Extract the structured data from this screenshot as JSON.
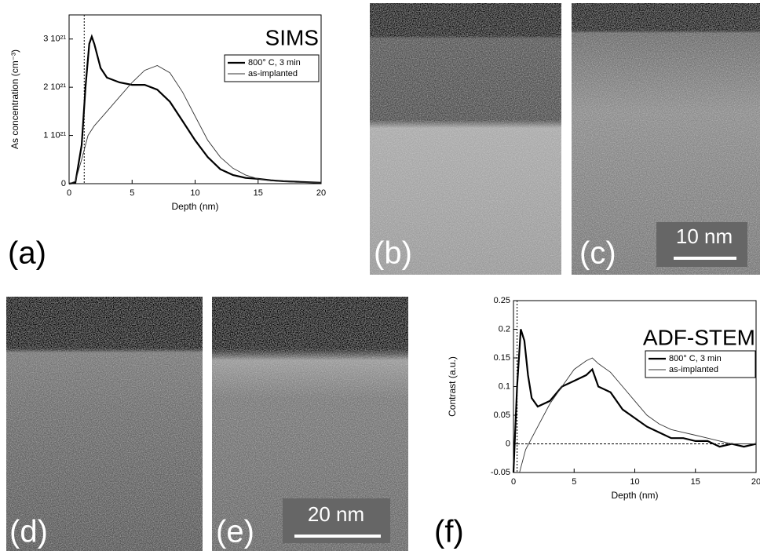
{
  "chart_data": [
    {
      "type": "line",
      "title": "SIMS",
      "x_label": "Depth (nm)",
      "y_label": "As concentration (cm⁻³)",
      "xlim": [
        0,
        20
      ],
      "xticks": [
        0,
        5,
        10,
        15,
        20
      ],
      "ylim": [
        0,
        3.5e+21
      ],
      "yticks": [
        0,
        {
          "value": 1e+21,
          "label": "1 10²¹"
        },
        {
          "value": 2e+21,
          "label": "2 10²¹"
        },
        {
          "value": 3e+21,
          "label": "3 10²¹"
        }
      ],
      "vline": 1.2,
      "series": [
        {
          "name": "800° C, 3 min",
          "color": "#000000",
          "width": 2.2,
          "x": [
            0,
            0.5,
            1,
            1.3,
            1.6,
            1.8,
            2,
            2.5,
            3,
            4,
            5,
            6,
            7,
            8,
            9,
            10,
            11,
            12,
            13,
            14,
            15,
            16,
            17,
            18,
            20
          ],
          "values": [
            0,
            2e+19,
            8e+20,
            2e+21,
            2.9e+21,
            3.05e+21,
            2.9e+21,
            2.4e+21,
            2.2e+21,
            2.1e+21,
            2.05e+21,
            2.05e+21,
            1.95e+21,
            1.7e+21,
            1.3e+21,
            9e+20,
            5.5e+20,
            3e+20,
            1.8e+20,
            1.2e+20,
            1e+20,
            7e+19,
            5e+19,
            4e+19,
            2e+19
          ]
        },
        {
          "name": "as-implanted",
          "color": "#333333",
          "width": 0.9,
          "x": [
            0,
            0.5,
            1,
            1.5,
            2,
            3,
            4,
            5,
            6,
            7,
            8,
            9,
            10,
            11,
            12,
            13,
            14,
            15,
            16,
            18,
            20
          ],
          "values": [
            0,
            5e+19,
            5e+20,
            1e+21,
            1.2e+21,
            1.5e+21,
            1.8e+21,
            2.1e+21,
            2.35e+21,
            2.45e+21,
            2.3e+21,
            1.9e+21,
            1.4e+21,
            9e+20,
            5.5e+20,
            3.2e+20,
            1.8e+20,
            1e+20,
            6e+19,
            3e+19,
            2e+19
          ]
        }
      ]
    },
    {
      "type": "line",
      "title": "ADF-STEM",
      "x_label": "Depth (nm)",
      "y_label": "Contrast (a.u.)",
      "xlim": [
        0,
        20
      ],
      "xticks": [
        0,
        5,
        10,
        15,
        20
      ],
      "ylim": [
        -0.05,
        0.25
      ],
      "yticks": [
        -0.05,
        0,
        0.05,
        0.1,
        0.15,
        0.2,
        0.25
      ],
      "vline": 0.3,
      "hline": 0,
      "series": [
        {
          "name": "800° C, 3 min",
          "color": "#000000",
          "width": 2.2,
          "x": [
            0,
            0.3,
            0.6,
            0.9,
            1.2,
            1.5,
            2,
            3,
            4,
            5,
            6,
            6.5,
            7,
            8,
            9,
            10,
            11,
            12,
            13,
            14,
            15,
            16,
            17,
            18,
            19,
            20
          ],
          "values": [
            -0.05,
            0.1,
            0.2,
            0.18,
            0.12,
            0.08,
            0.065,
            0.075,
            0.1,
            0.11,
            0.12,
            0.13,
            0.1,
            0.09,
            0.06,
            0.045,
            0.03,
            0.02,
            0.01,
            0.01,
            0.005,
            0.005,
            -0.005,
            0,
            -0.005,
            0
          ]
        },
        {
          "name": "as-implanted",
          "color": "#333333",
          "width": 0.9,
          "x": [
            0.5,
            1,
            2,
            3,
            4,
            5,
            6,
            6.5,
            7,
            8,
            9,
            10,
            11,
            12,
            13,
            14,
            15,
            16,
            17,
            18,
            20
          ],
          "values": [
            -0.05,
            -0.01,
            0.03,
            0.07,
            0.1,
            0.13,
            0.145,
            0.15,
            0.14,
            0.125,
            0.1,
            0.075,
            0.05,
            0.035,
            0.025,
            0.02,
            0.015,
            0.01,
            0.005,
            0,
            0
          ]
        }
      ]
    }
  ],
  "panels": {
    "a": "(a)",
    "b": "(b)",
    "c": "(c)",
    "d": "(d)",
    "e": "(e)",
    "f": "(f)",
    "scale_c": "10 nm",
    "scale_e": "20 nm"
  }
}
